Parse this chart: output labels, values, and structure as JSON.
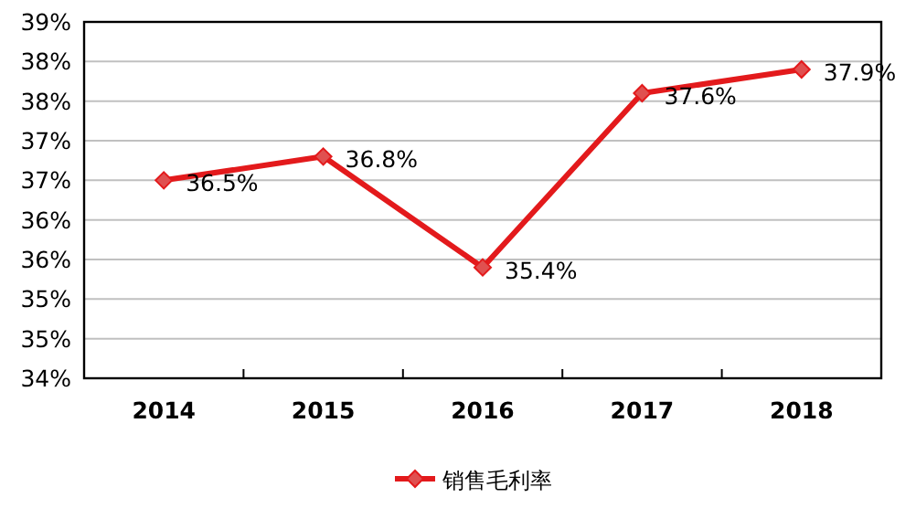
{
  "chart_data": {
    "type": "line",
    "categories": [
      "2014",
      "2015",
      "2016",
      "2017",
      "2018"
    ],
    "series": [
      {
        "name": "销售毛利率",
        "color": "#e31a1c",
        "values": [
          36.5,
          36.8,
          35.4,
          37.6,
          37.9
        ],
        "value_labels": [
          "36.5%",
          "36.8%",
          "35.4%",
          "37.6%",
          "37.9%"
        ]
      }
    ],
    "ylim": [
      34,
      38.5
    ],
    "yticks": [
      {
        "value": 34,
        "label": "34%"
      },
      {
        "value": 34.5,
        "label": "35%"
      },
      {
        "value": 35,
        "label": "35%"
      },
      {
        "value": 35.5,
        "label": "36%"
      },
      {
        "value": 36,
        "label": "36%"
      },
      {
        "value": 36.5,
        "label": "37%"
      },
      {
        "value": 37,
        "label": "37%"
      },
      {
        "value": 37.5,
        "label": "38%"
      },
      {
        "value": 38,
        "label": "38%"
      },
      {
        "value": 38.5,
        "label": "39%"
      }
    ],
    "grid": "y",
    "legend": "bottom",
    "marker": "diamond",
    "line_style": "solid"
  }
}
